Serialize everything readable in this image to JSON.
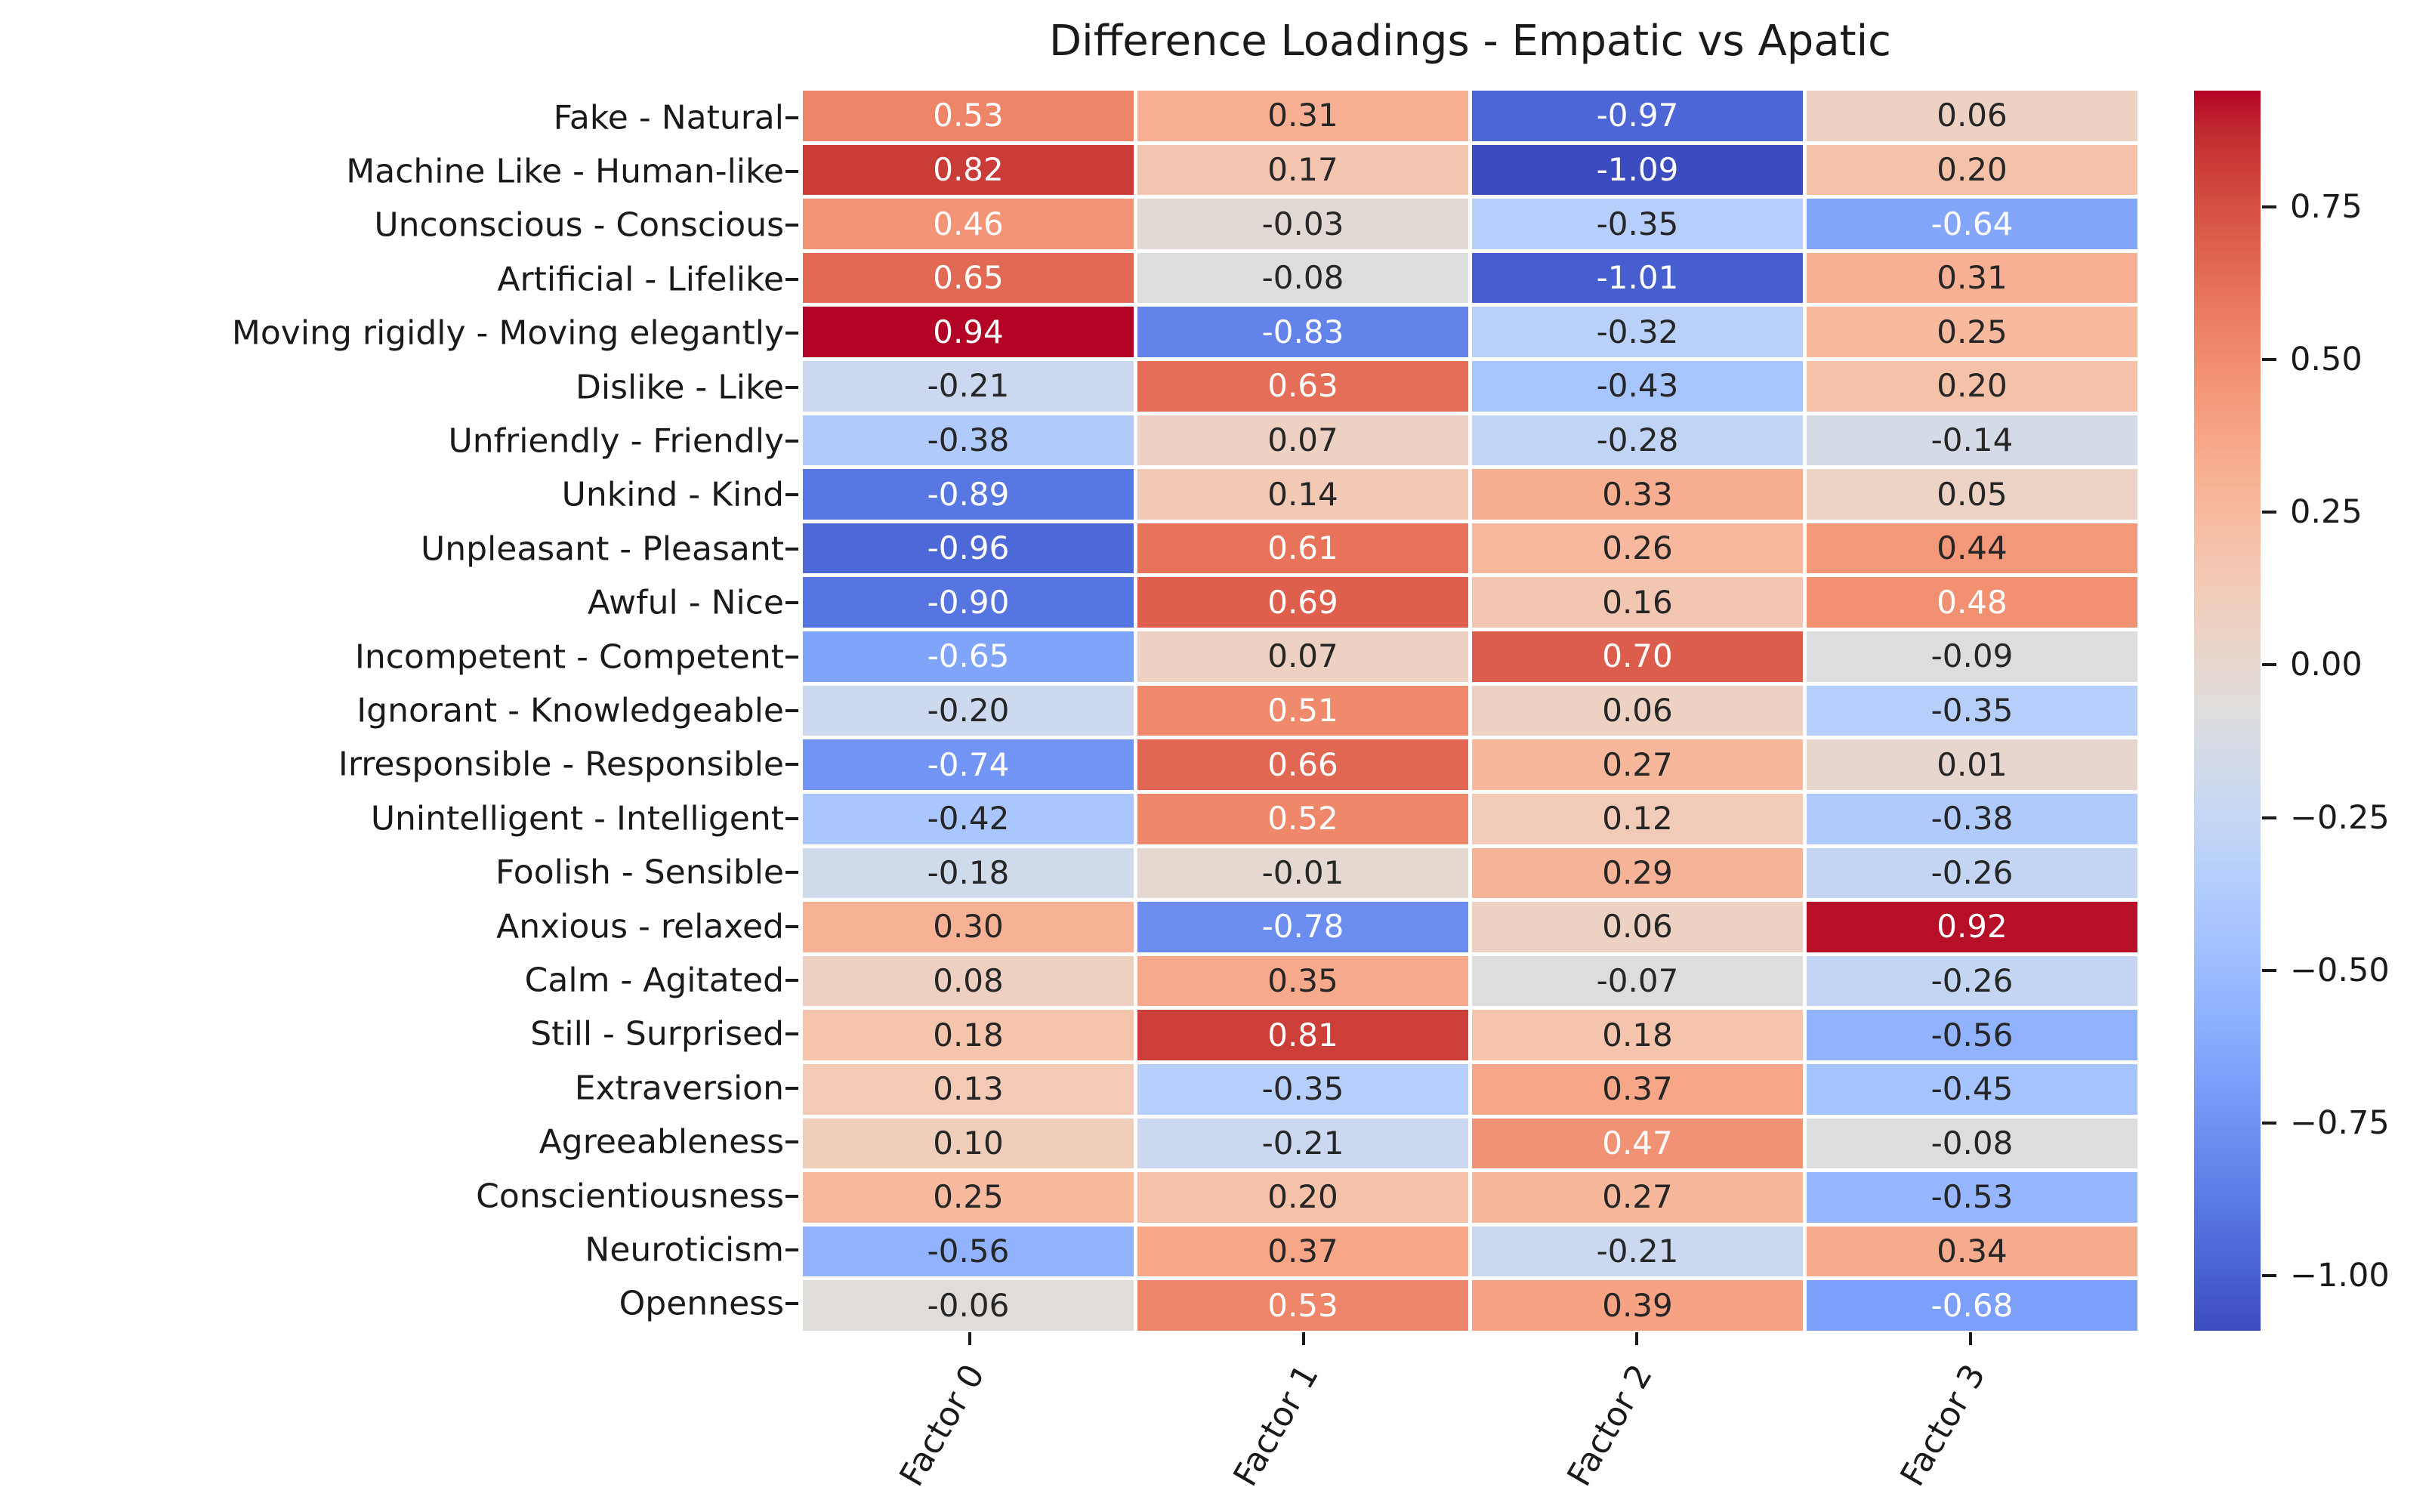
{
  "title": "Difference Loadings - Empatic vs Apatic",
  "chart_data": {
    "type": "heatmap",
    "title": "Difference Loadings - Empatic vs Apatic",
    "colormap": "coolwarm",
    "vmin": -1.09,
    "vmax": 0.94,
    "annotation_decimals": 2,
    "cell_text_dark": "#262626",
    "cell_text_light": "#ffffff",
    "columns": [
      "Factor 0",
      "Factor 1",
      "Factor 2",
      "Factor 3"
    ],
    "rows": [
      {
        "label": "Fake - Natural",
        "values": [
          0.53,
          0.31,
          -0.97,
          0.06
        ],
        "annot_colors": [
          "w",
          "b",
          "w",
          "b"
        ]
      },
      {
        "label": "Machine Like - Human-like",
        "values": [
          0.82,
          0.17,
          -1.09,
          0.2
        ],
        "annot_colors": [
          "w",
          "b",
          "w",
          "b"
        ]
      },
      {
        "label": "Unconscious - Conscious",
        "values": [
          0.46,
          -0.03,
          -0.35,
          -0.64
        ],
        "annot_colors": [
          "w",
          "b",
          "b",
          "w"
        ]
      },
      {
        "label": "Artificial - Lifelike",
        "values": [
          0.65,
          -0.08,
          -1.01,
          0.31
        ],
        "annot_colors": [
          "w",
          "b",
          "w",
          "b"
        ]
      },
      {
        "label": "Moving rigidly - Moving elegantly",
        "values": [
          0.94,
          -0.83,
          -0.32,
          0.25
        ],
        "annot_colors": [
          "w",
          "w",
          "b",
          "b"
        ]
      },
      {
        "label": "Dislike - Like",
        "values": [
          -0.21,
          0.63,
          -0.43,
          0.2
        ],
        "annot_colors": [
          "b",
          "w",
          "b",
          "b"
        ]
      },
      {
        "label": "Unfriendly - Friendly",
        "values": [
          -0.38,
          0.07,
          -0.28,
          -0.14
        ],
        "annot_colors": [
          "b",
          "b",
          "b",
          "b"
        ]
      },
      {
        "label": "Unkind - Kind",
        "values": [
          -0.89,
          0.14,
          0.33,
          0.05
        ],
        "annot_colors": [
          "w",
          "b",
          "b",
          "b"
        ]
      },
      {
        "label": "Unpleasant - Pleasant",
        "values": [
          -0.96,
          0.61,
          0.26,
          0.44
        ],
        "annot_colors": [
          "w",
          "w",
          "b",
          "b"
        ]
      },
      {
        "label": "Awful - Nice",
        "values": [
          -0.9,
          0.69,
          0.16,
          0.48
        ],
        "annot_colors": [
          "w",
          "w",
          "b",
          "w"
        ]
      },
      {
        "label": "Incompetent - Competent",
        "values": [
          -0.65,
          0.07,
          0.7,
          -0.09
        ],
        "annot_colors": [
          "w",
          "b",
          "w",
          "b"
        ]
      },
      {
        "label": "Ignorant - Knowledgeable",
        "values": [
          -0.2,
          0.51,
          0.06,
          -0.35
        ],
        "annot_colors": [
          "b",
          "w",
          "b",
          "b"
        ]
      },
      {
        "label": "Irresponsible - Responsible",
        "values": [
          -0.74,
          0.66,
          0.27,
          0.01
        ],
        "annot_colors": [
          "w",
          "w",
          "b",
          "b"
        ]
      },
      {
        "label": "Unintelligent - Intelligent",
        "values": [
          -0.42,
          0.52,
          0.12,
          -0.38
        ],
        "annot_colors": [
          "b",
          "w",
          "b",
          "b"
        ]
      },
      {
        "label": "Foolish - Sensible",
        "values": [
          -0.18,
          -0.01,
          0.29,
          -0.26
        ],
        "annot_colors": [
          "b",
          "b",
          "b",
          "b"
        ]
      },
      {
        "label": "Anxious  - relaxed",
        "values": [
          0.3,
          -0.78,
          0.06,
          0.92
        ],
        "annot_colors": [
          "b",
          "w",
          "b",
          "w"
        ]
      },
      {
        "label": "Calm - Agitated",
        "values": [
          0.08,
          0.35,
          -0.07,
          -0.26
        ],
        "annot_colors": [
          "b",
          "b",
          "b",
          "b"
        ]
      },
      {
        "label": "Still - Surprised",
        "values": [
          0.18,
          0.81,
          0.18,
          -0.56
        ],
        "annot_colors": [
          "b",
          "w",
          "b",
          "b"
        ]
      },
      {
        "label": "Extraversion",
        "values": [
          0.13,
          -0.35,
          0.37,
          -0.45
        ],
        "annot_colors": [
          "b",
          "b",
          "b",
          "b"
        ]
      },
      {
        "label": "Agreeableness",
        "values": [
          0.1,
          -0.21,
          0.47,
          -0.08
        ],
        "annot_colors": [
          "b",
          "b",
          "w",
          "b"
        ]
      },
      {
        "label": "Conscientiousness",
        "values": [
          0.25,
          0.2,
          0.27,
          -0.53
        ],
        "annot_colors": [
          "b",
          "b",
          "b",
          "b"
        ]
      },
      {
        "label": "Neuroticism",
        "values": [
          -0.56,
          0.37,
          -0.21,
          0.34
        ],
        "annot_colors": [
          "b",
          "b",
          "b",
          "b"
        ]
      },
      {
        "label": "Openness",
        "values": [
          -0.06,
          0.53,
          0.39,
          -0.68
        ],
        "annot_colors": [
          "b",
          "w",
          "b",
          "w"
        ]
      }
    ],
    "colorbar_ticks": [
      {
        "label": "0.75",
        "value": 0.75
      },
      {
        "label": "0.50",
        "value": 0.5
      },
      {
        "label": "0.25",
        "value": 0.25
      },
      {
        "label": "0.00",
        "value": 0.0
      },
      {
        "label": "−0.25",
        "value": -0.25
      },
      {
        "label": "−0.50",
        "value": -0.5
      },
      {
        "label": "−0.75",
        "value": -0.75
      },
      {
        "label": "−1.00",
        "value": -1.0
      }
    ],
    "legend_position": "right",
    "grid": false
  }
}
